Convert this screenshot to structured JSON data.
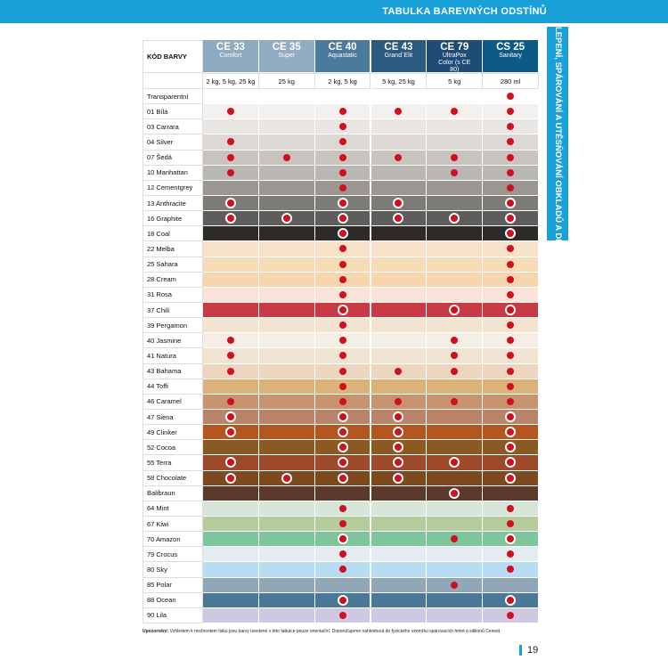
{
  "header": {
    "title": "TABULKA BAREVNÝCH ODSTÍNŮ",
    "side_tab": "LEPENÍ, SPÁROVÁNÍ A UTĚSŇOVÁNÍ OBKLADŮ A DLAŽBY"
  },
  "table": {
    "first_header": "KÓD BARVY",
    "columns": [
      {
        "name": "CE 33",
        "subtitle": "Comfort",
        "packaging": "2 kg, 5 kg, 25 kg",
        "color": "#8eaabf"
      },
      {
        "name": "CE 35",
        "subtitle": "Super",
        "packaging": "25 kg",
        "color": "#92acc2"
      },
      {
        "name": "CE 40",
        "subtitle": "Aquastatic",
        "packaging": "2 kg, 5 kg",
        "color": "#4b7b9c"
      },
      {
        "name": "CE 43",
        "subtitle": "Grand´Elit",
        "packaging": "5 kg, 25 kg",
        "color": "#2b5a80"
      },
      {
        "name": "CE 79",
        "subtitle": "UltraPox Color (s CE 80)",
        "packaging": "5 kg",
        "color": "#1f4c74"
      },
      {
        "name": "CS 25",
        "subtitle": "Sanitary",
        "packaging": "280 ml",
        "color": "#0e5a86"
      }
    ],
    "rows": [
      {
        "label": "Transparentní",
        "color": "#ffffff",
        "marks": [
          null,
          null,
          null,
          null,
          null,
          "filled"
        ]
      },
      {
        "label": "01 Bílá",
        "color": "#f2f1ef",
        "marks": [
          "filled",
          null,
          "filled",
          "filled",
          "filled",
          "filled"
        ]
      },
      {
        "label": "03 Carrara",
        "color": "#e9e6e3",
        "marks": [
          null,
          null,
          "filled",
          null,
          null,
          "filled"
        ]
      },
      {
        "label": "04 Silver",
        "color": "#dcd9d5",
        "marks": [
          "filled",
          null,
          "filled",
          null,
          null,
          "filled"
        ]
      },
      {
        "label": "07 Šedá",
        "color": "#c8c4bd",
        "marks": [
          "filled",
          "filled",
          "filled",
          "filled",
          "filled",
          "filled"
        ]
      },
      {
        "label": "10 Manhattan",
        "color": "#b9b7b3",
        "marks": [
          "filled",
          null,
          "filled",
          null,
          "filled",
          "filled"
        ]
      },
      {
        "label": "12 Cementgrey",
        "color": "#9b9790",
        "marks": [
          null,
          null,
          "filled",
          null,
          null,
          "filled"
        ]
      },
      {
        "label": "13 Anthracite",
        "color": "#7d7b77",
        "marks": [
          "ring",
          null,
          "ring",
          "ring",
          null,
          "ring"
        ]
      },
      {
        "label": "16 Graphite",
        "color": "#5e5d5c",
        "marks": [
          "ring",
          "ring",
          "ring",
          "ring",
          "ring",
          "ring"
        ]
      },
      {
        "label": "18 Coal",
        "color": "#2d2b2a",
        "marks": [
          null,
          null,
          "ring",
          null,
          null,
          "ring"
        ]
      },
      {
        "label": "22 Melba",
        "color": "#f6e2c8",
        "marks": [
          null,
          null,
          "filled",
          null,
          null,
          "filled"
        ]
      },
      {
        "label": "25 Sahara",
        "color": "#f5dcb7",
        "marks": [
          null,
          null,
          "filled",
          null,
          null,
          "filled"
        ]
      },
      {
        "label": "28 Cream",
        "color": "#f6d6af",
        "marks": [
          null,
          null,
          "filled",
          null,
          null,
          "filled"
        ]
      },
      {
        "label": "31 Rosa",
        "color": "#fbe3d9",
        "marks": [
          null,
          null,
          "filled",
          null,
          null,
          "filled"
        ]
      },
      {
        "label": "37 Chili",
        "color": "#c93a47",
        "marks": [
          null,
          null,
          "ring",
          null,
          "ring",
          "ring"
        ]
      },
      {
        "label": "39 Pergamon",
        "color": "#f3e3d1",
        "marks": [
          null,
          null,
          "filled",
          null,
          null,
          "filled"
        ]
      },
      {
        "label": "40 Jasmine",
        "color": "#f5eee4",
        "marks": [
          "filled",
          null,
          "filled",
          null,
          "filled",
          "filled"
        ]
      },
      {
        "label": "41 Natura",
        "color": "#f0e3d2",
        "marks": [
          "filled",
          null,
          "filled",
          null,
          "filled",
          "filled"
        ]
      },
      {
        "label": "43 Bahama",
        "color": "#ecd6c0",
        "marks": [
          "filled",
          null,
          "filled",
          "filled",
          "filled",
          "filled"
        ]
      },
      {
        "label": "44 Toffi",
        "color": "#dbb27a",
        "marks": [
          null,
          null,
          "filled",
          null,
          null,
          "filled"
        ]
      },
      {
        "label": "46 Caramel",
        "color": "#c9936d",
        "marks": [
          "filled",
          null,
          "filled",
          "filled",
          "filled",
          "filled"
        ]
      },
      {
        "label": "47 Siena",
        "color": "#ba846b",
        "marks": [
          "ring",
          null,
          "ring",
          "ring",
          null,
          "ring"
        ]
      },
      {
        "label": "49 Clinker",
        "color": "#b3571f",
        "marks": [
          "ring",
          null,
          "ring",
          "ring",
          null,
          "ring"
        ]
      },
      {
        "label": "52 Cocoa",
        "color": "#8a5a22",
        "marks": [
          null,
          null,
          "ring",
          "ring",
          null,
          "ring"
        ]
      },
      {
        "label": "55 Terra",
        "color": "#9d4a2c",
        "marks": [
          "ring",
          null,
          "ring",
          "ring",
          "ring",
          "ring"
        ]
      },
      {
        "label": "58 Chocolate",
        "color": "#7d4a1f",
        "marks": [
          "ring",
          "ring",
          "ring",
          "ring",
          null,
          "ring"
        ]
      },
      {
        "label": "Balibraun",
        "color": "#5b3a2c",
        "marks": [
          null,
          null,
          null,
          null,
          "ring",
          null
        ]
      },
      {
        "label": "64 Mint",
        "color": "#d6e5da",
        "marks": [
          null,
          null,
          "filled",
          null,
          null,
          "filled"
        ]
      },
      {
        "label": "67 Kiwi",
        "color": "#b5cd9c",
        "marks": [
          null,
          null,
          "filled",
          null,
          null,
          "filled"
        ]
      },
      {
        "label": "70 Amazon",
        "color": "#7fc59b",
        "marks": [
          null,
          null,
          "ring",
          null,
          "filled",
          "ring"
        ]
      },
      {
        "label": "79 Crocus",
        "color": "#e4ebf1",
        "marks": [
          null,
          null,
          "filled",
          null,
          null,
          "filled"
        ]
      },
      {
        "label": "80 Sky",
        "color": "#b8dcf3",
        "marks": [
          null,
          null,
          "filled",
          null,
          null,
          "filled"
        ]
      },
      {
        "label": "85 Polar",
        "color": "#90a7b7",
        "marks": [
          null,
          null,
          null,
          null,
          "filled",
          null
        ]
      },
      {
        "label": "88 Ocean",
        "color": "#4c7897",
        "marks": [
          null,
          null,
          "ring",
          null,
          null,
          "ring"
        ]
      },
      {
        "label": "90 Lila",
        "color": "#cfc8e3",
        "marks": [
          null,
          null,
          "filled",
          null,
          null,
          "filled"
        ]
      }
    ]
  },
  "footer": {
    "note_label": "Upozornění:",
    "note": "Vzhledem k možnostem tisku jsou barvy uvedené v této tabulce pouze orientační. Doporučujeme nahlédnout do fyzického vzorníku spárovacích hmot a silikonů Ceresit.",
    "page_number": "19"
  }
}
